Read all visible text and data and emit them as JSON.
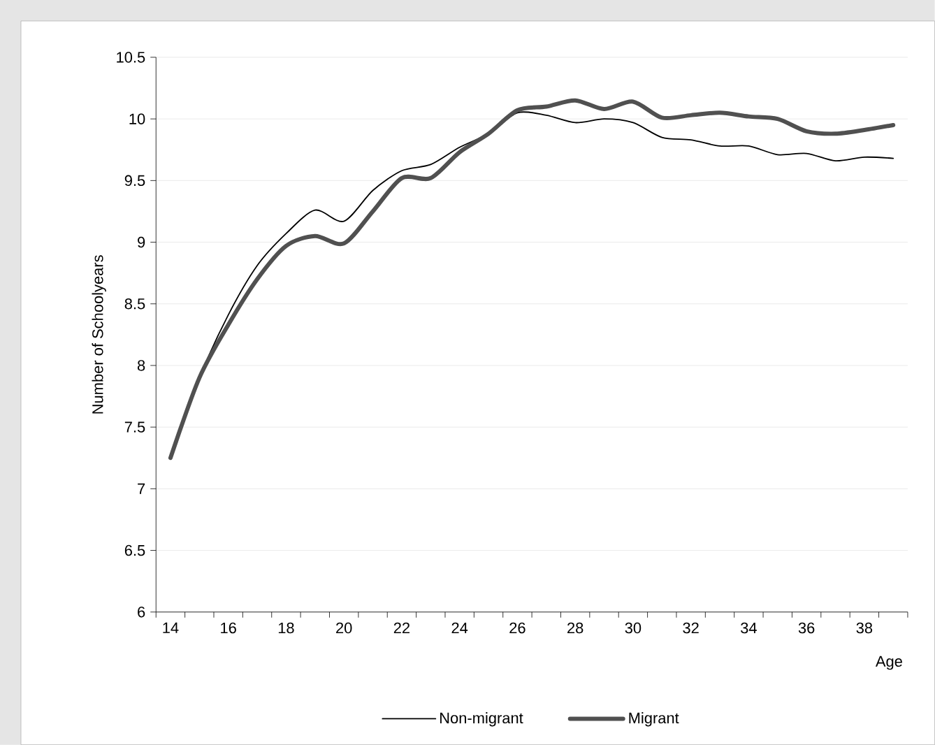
{
  "chart_data": {
    "type": "line",
    "xlabel": "Age",
    "ylabel": "Number of Schoolyears",
    "categories": [
      "14",
      null,
      "16",
      null,
      "18",
      null,
      "20",
      null,
      "22",
      null,
      "24",
      null,
      "26",
      null,
      "28",
      null,
      "30",
      null,
      "32",
      null,
      "34",
      null,
      "36",
      null,
      "38",
      null
    ],
    "series": [
      {
        "name": "Non-migrant",
        "color": "#000000",
        "values": [
          7.25,
          7.9,
          8.41,
          8.81,
          9.07,
          9.26,
          9.17,
          9.42,
          9.58,
          9.63,
          9.77,
          9.88,
          10.05,
          10.03,
          9.97,
          10.0,
          9.97,
          9.85,
          9.83,
          9.78,
          9.78,
          9.71,
          9.72,
          9.66,
          9.69,
          9.68
        ]
      },
      {
        "name": "Migrant",
        "color": "#505050",
        "values": [
          7.25,
          7.9,
          8.33,
          8.7,
          8.97,
          9.05,
          8.99,
          9.25,
          9.52,
          9.52,
          9.73,
          9.88,
          10.07,
          10.1,
          10.15,
          10.08,
          10.14,
          10.01,
          10.03,
          10.05,
          10.02,
          10.0,
          9.9,
          9.88,
          9.91,
          9.95
        ]
      }
    ],
    "ylim": [
      6,
      10.5
    ],
    "yticks": [
      6,
      6.5,
      7,
      7.5,
      8,
      8.5,
      9,
      9.5,
      10,
      10.5
    ],
    "grid": "y",
    "legend": "bottom"
  }
}
